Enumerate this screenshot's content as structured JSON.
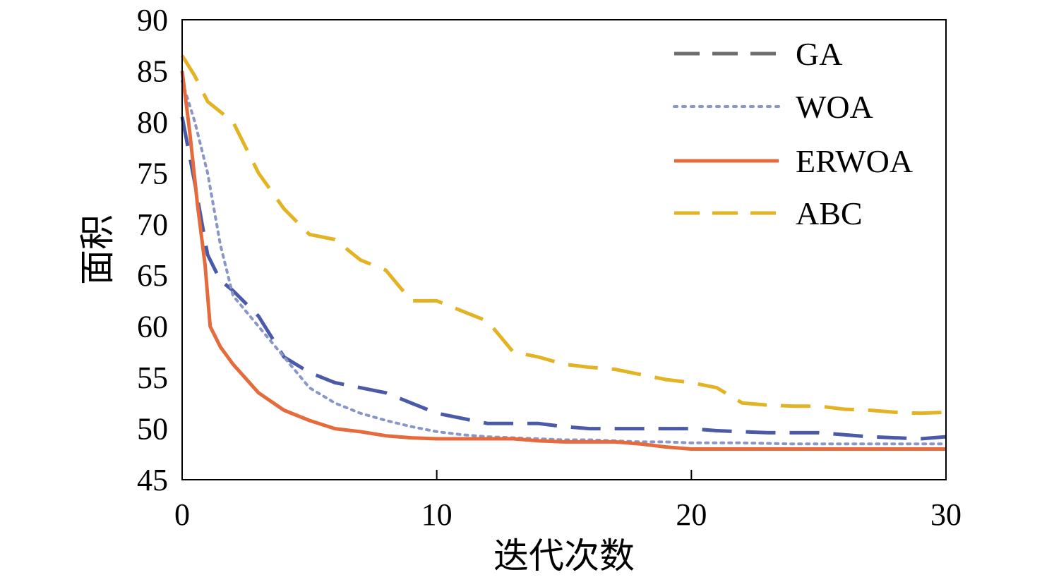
{
  "chart_data": {
    "type": "line",
    "title": "",
    "xlabel": "迭代次数",
    "ylabel": "面积",
    "xlim": [
      0,
      30
    ],
    "ylim": [
      45,
      90
    ],
    "x_ticks": [
      "0",
      "10",
      "20",
      "30"
    ],
    "y_ticks": [
      "45",
      "50",
      "55",
      "60",
      "65",
      "70",
      "75",
      "80",
      "85",
      "90"
    ],
    "grid": false,
    "legend_position": "top-right",
    "series": [
      {
        "name": "GA",
        "color": "#4a5aa8",
        "legend_color": "#6e6e6e",
        "style": "dashed",
        "points": [
          [
            0,
            80.5
          ],
          [
            0.5,
            74
          ],
          [
            1,
            67
          ],
          [
            1.5,
            64.5
          ],
          [
            2,
            63.5
          ],
          [
            3,
            61
          ],
          [
            4,
            57
          ],
          [
            5,
            55.5
          ],
          [
            6,
            54.5
          ],
          [
            7,
            54
          ],
          [
            8,
            53.5
          ],
          [
            9,
            52.5
          ],
          [
            10,
            51.5
          ],
          [
            11,
            51
          ],
          [
            12,
            50.5
          ],
          [
            13,
            50.5
          ],
          [
            14,
            50.5
          ],
          [
            15,
            50.2
          ],
          [
            16,
            50
          ],
          [
            17,
            50
          ],
          [
            18,
            50
          ],
          [
            19,
            50
          ],
          [
            20,
            50
          ],
          [
            21,
            49.8
          ],
          [
            22,
            49.7
          ],
          [
            23,
            49.6
          ],
          [
            24,
            49.6
          ],
          [
            25,
            49.6
          ],
          [
            26,
            49.4
          ],
          [
            27,
            49.2
          ],
          [
            28,
            49.1
          ],
          [
            29,
            49.0
          ],
          [
            30,
            49.2
          ]
        ]
      },
      {
        "name": "WOA",
        "color": "#8a96c8",
        "style": "dotted",
        "points": [
          [
            0,
            84
          ],
          [
            0.5,
            80
          ],
          [
            1,
            75
          ],
          [
            1.5,
            68
          ],
          [
            2,
            63
          ],
          [
            3,
            60
          ],
          [
            4,
            57
          ],
          [
            5,
            54
          ],
          [
            6,
            52.5
          ],
          [
            7,
            51.5
          ],
          [
            8,
            50.8
          ],
          [
            9,
            50.2
          ],
          [
            10,
            49.7
          ],
          [
            11,
            49.4
          ],
          [
            12,
            49.2
          ],
          [
            13,
            49.1
          ],
          [
            14,
            49.0
          ],
          [
            15,
            48.9
          ],
          [
            16,
            48.9
          ],
          [
            17,
            48.8
          ],
          [
            18,
            48.7
          ],
          [
            19,
            48.7
          ],
          [
            20,
            48.6
          ],
          [
            22,
            48.6
          ],
          [
            24,
            48.5
          ],
          [
            26,
            48.5
          ],
          [
            28,
            48.5
          ],
          [
            30,
            48.5
          ]
        ]
      },
      {
        "name": "ERWOA",
        "color": "#e56b3c",
        "style": "solid",
        "points": [
          [
            0,
            85
          ],
          [
            0.3,
            79
          ],
          [
            0.6,
            72
          ],
          [
            0.9,
            66
          ],
          [
            1.1,
            60
          ],
          [
            1.5,
            58
          ],
          [
            2,
            56.3
          ],
          [
            3,
            53.5
          ],
          [
            4,
            51.8
          ],
          [
            5,
            50.8
          ],
          [
            6,
            50
          ],
          [
            7,
            49.7
          ],
          [
            8,
            49.3
          ],
          [
            9,
            49.1
          ],
          [
            10,
            49
          ],
          [
            11,
            49
          ],
          [
            12,
            49
          ],
          [
            13,
            49
          ],
          [
            14,
            48.8
          ],
          [
            15,
            48.7
          ],
          [
            16,
            48.7
          ],
          [
            17,
            48.7
          ],
          [
            18,
            48.5
          ],
          [
            19,
            48.2
          ],
          [
            20,
            48
          ],
          [
            22,
            48
          ],
          [
            24,
            48
          ],
          [
            26,
            48
          ],
          [
            28,
            48
          ],
          [
            30,
            48
          ]
        ]
      },
      {
        "name": "ABC",
        "color": "#e3b324",
        "style": "dashed",
        "points": [
          [
            0,
            86.5
          ],
          [
            0.5,
            84.5
          ],
          [
            1,
            82
          ],
          [
            1.5,
            81
          ],
          [
            2,
            80
          ],
          [
            3,
            75
          ],
          [
            4,
            71.5
          ],
          [
            5,
            69
          ],
          [
            6,
            68.5
          ],
          [
            7,
            66.5
          ],
          [
            8,
            65.5
          ],
          [
            9,
            62.5
          ],
          [
            10,
            62.5
          ],
          [
            11,
            61.5
          ],
          [
            12,
            60.5
          ],
          [
            13,
            57.5
          ],
          [
            14,
            57
          ],
          [
            15,
            56.3
          ],
          [
            16,
            56
          ],
          [
            17,
            55.8
          ],
          [
            18,
            55.3
          ],
          [
            19,
            54.8
          ],
          [
            20,
            54.5
          ],
          [
            21,
            54
          ],
          [
            22,
            52.5
          ],
          [
            23,
            52.3
          ],
          [
            24,
            52.2
          ],
          [
            25,
            52.2
          ],
          [
            26,
            51.9
          ],
          [
            27,
            51.8
          ],
          [
            28,
            51.6
          ],
          [
            29,
            51.5
          ],
          [
            30,
            51.6
          ]
        ]
      }
    ]
  }
}
